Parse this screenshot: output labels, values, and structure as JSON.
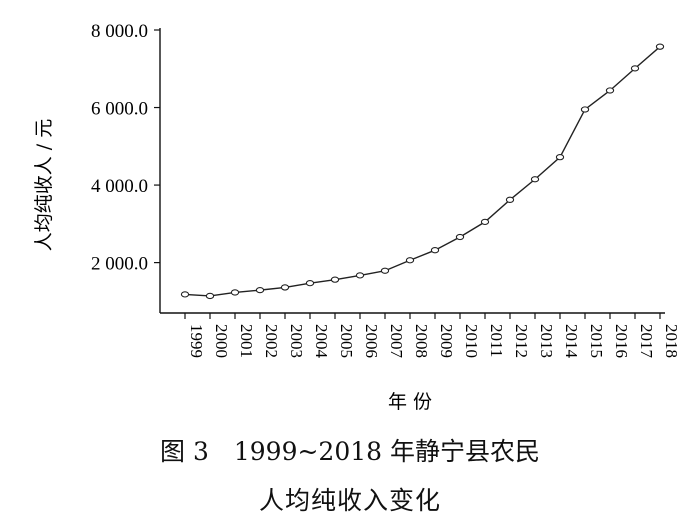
{
  "chart_data": {
    "type": "line",
    "xlabel": "年 份",
    "ylabel": "人均纯收人 / 元",
    "x": [
      "1999",
      "2000",
      "2001",
      "2002",
      "2003",
      "2004",
      "2005",
      "2006",
      "2007",
      "2008",
      "2009",
      "2010",
      "2011",
      "2012",
      "2013",
      "2014",
      "2015",
      "2016",
      "2017",
      "2018"
    ],
    "series": [
      {
        "values": [
          1180,
          1140,
          1230,
          1290,
          1360,
          1470,
          1560,
          1670,
          1790,
          2060,
          2320,
          2660,
          3050,
          3620,
          4150,
          4720,
          5950,
          6440,
          7010,
          7570
        ]
      }
    ],
    "yticks": [
      "2 000.0",
      "4 000.0",
      "6 000.0",
      "8 000.0"
    ],
    "ytick_values": [
      2000,
      4000,
      6000,
      8000
    ],
    "ylim": [
      700,
      8000
    ],
    "grid": false,
    "marker": "open-circle",
    "line_color": "#222222"
  },
  "caption": {
    "line1": "图 3　1999~2018 年静宁县农民",
    "line2": "人均纯收入变化"
  }
}
